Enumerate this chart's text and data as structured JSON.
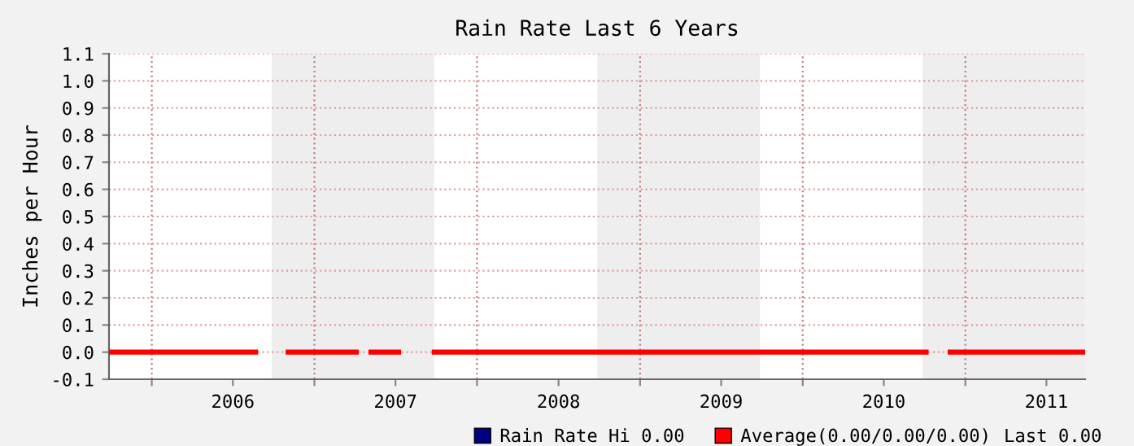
{
  "chart_data": {
    "type": "line",
    "title": "Rain Rate Last 6 Years",
    "ylabel": "Inches per Hour",
    "x": [
      "2005-09-27",
      "2006-08-22",
      "2006-09-25",
      "2006-11-03",
      "2007-04-05",
      "2007-04-20",
      "2007-05-08",
      "2007-07-09",
      "2007-08-15",
      "2007-09-27",
      "2010-10-05",
      "2010-10-30",
      "2010-11-28",
      "2011-09-27"
    ],
    "series": [
      {
        "name": "Rain Rate",
        "color": "#000080",
        "values": [
          null,
          null,
          null,
          null,
          null,
          null,
          null,
          null,
          null,
          null,
          null,
          null,
          null,
          null
        ]
      },
      {
        "name": "Average(0.00/0.00/0.00)",
        "color": "#ff0000",
        "values": [
          0.0,
          0.0,
          null,
          0.0,
          0.0,
          null,
          0.0,
          0.0,
          null,
          0.0,
          0.0,
          null,
          0.0,
          0.0
        ]
      }
    ],
    "annotations": [
      "Hi 0.00",
      "Last 0.00"
    ],
    "xlim": [
      "2005-09-27",
      "2011-09-27"
    ],
    "xticks": [
      {
        "value": "2006-01-01",
        "label": null
      },
      {
        "value": "2006-07-02",
        "label": "2006"
      },
      {
        "value": "2007-01-01",
        "label": null
      },
      {
        "value": "2007-07-02",
        "label": "2007"
      },
      {
        "value": "2008-01-01",
        "label": null
      },
      {
        "value": "2008-07-02",
        "label": "2008"
      },
      {
        "value": "2009-01-01",
        "label": null
      },
      {
        "value": "2009-07-02",
        "label": "2009"
      },
      {
        "value": "2010-01-01",
        "label": null
      },
      {
        "value": "2010-07-02",
        "label": "2010"
      },
      {
        "value": "2011-01-01",
        "label": null
      },
      {
        "value": "2011-07-02",
        "label": "2011"
      }
    ],
    "ylim": [
      -0.1,
      1.1
    ],
    "yticks": [
      {
        "value": -0.1,
        "label": "-0.1"
      },
      {
        "value": 0.0,
        "label": "0.0"
      },
      {
        "value": 0.1,
        "label": "0.1"
      },
      {
        "value": 0.2,
        "label": "0.2"
      },
      {
        "value": 0.3,
        "label": "0.3"
      },
      {
        "value": 0.4,
        "label": "0.4"
      },
      {
        "value": 0.5,
        "label": "0.5"
      },
      {
        "value": 0.6,
        "label": "0.6"
      },
      {
        "value": 0.7,
        "label": "0.7"
      },
      {
        "value": 0.8,
        "label": "0.8"
      },
      {
        "value": 0.9,
        "label": "0.9"
      },
      {
        "value": 1.0,
        "label": "1.0"
      },
      {
        "value": 1.1,
        "label": "1.1"
      }
    ],
    "bands": [
      {
        "axis": "x",
        "from": "2006-09-27",
        "to": "2007-09-27",
        "color": "#eeeeee"
      },
      {
        "axis": "x",
        "from": "2008-09-27",
        "to": "2009-09-27",
        "color": "#eeeeee"
      },
      {
        "axis": "x",
        "from": "2010-09-27",
        "to": "2011-09-27",
        "color": "#eeeeee"
      }
    ],
    "grid": true,
    "legend": "bottom",
    "line_style": "solid",
    "marker": "none"
  }
}
